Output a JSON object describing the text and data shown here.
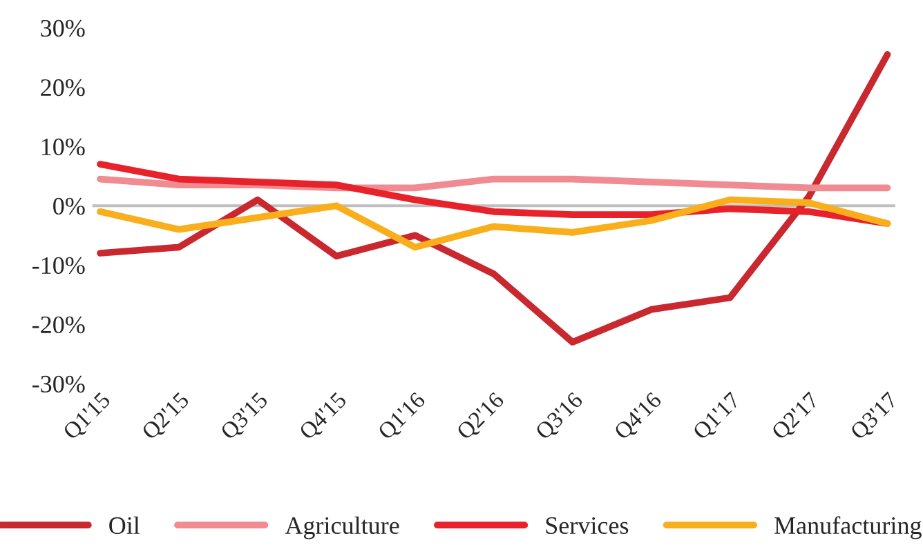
{
  "chart_data": {
    "type": "line",
    "categories": [
      "Q1'15",
      "Q2'15",
      "Q3'15",
      "Q4'15",
      "Q1'16",
      "Q2'16",
      "Q3'16",
      "Q4'16",
      "Q1'17",
      "Q2'17",
      "Q3'17"
    ],
    "series": [
      {
        "name": "Oil",
        "color": "#c8282e",
        "values": [
          -8,
          -7,
          1,
          -8.5,
          -5,
          -11.5,
          -23,
          -17.5,
          -15.5,
          1.5,
          25.5
        ]
      },
      {
        "name": "Agriculture",
        "color": "#ef8b91",
        "values": [
          4.5,
          3.5,
          3.5,
          3,
          3,
          4.5,
          4.5,
          4,
          3.5,
          3,
          3
        ]
      },
      {
        "name": "Services",
        "color": "#e8222b",
        "values": [
          7,
          4.5,
          4,
          3.5,
          1,
          -1,
          -1.5,
          -1.5,
          -0.5,
          -1,
          -3
        ]
      },
      {
        "name": "Manufacturing",
        "color": "#f9ae1c",
        "values": [
          -1,
          -4,
          -2,
          0,
          -7,
          -3.5,
          -4.5,
          -2.5,
          1,
          0.5,
          -3
        ]
      }
    ],
    "ylim": [
      -30,
      30
    ],
    "yticks": [
      {
        "value": -30,
        "label": "-30%"
      },
      {
        "value": -20,
        "label": "-20%"
      },
      {
        "value": -10,
        "label": "-10%"
      },
      {
        "value": 0,
        "label": "0%"
      },
      {
        "value": 10,
        "label": "10%"
      },
      {
        "value": 20,
        "label": "20%"
      },
      {
        "value": 30,
        "label": "30%"
      }
    ],
    "ref_lines": [
      {
        "axis": "y",
        "value": 0,
        "color": "#bfbfbf"
      }
    ],
    "grid": false,
    "legend": "bottom",
    "marker": "none",
    "line_style": "solid"
  }
}
